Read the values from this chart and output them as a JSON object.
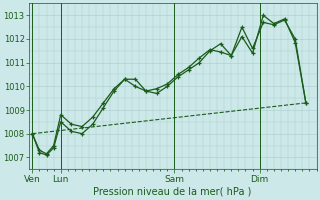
{
  "title": "Pression niveau de la mer( hPa )",
  "bg_color": "#cce8e8",
  "grid_color": "#aacccc",
  "line_color": "#1a5c1a",
  "ylim": [
    1006.5,
    1013.5
  ],
  "yticks": [
    1007,
    1008,
    1009,
    1010,
    1011,
    1012,
    1013
  ],
  "day_labels": [
    "Ven",
    "Lun",
    "Sam",
    "Dim"
  ],
  "day_positions": [
    0,
    8,
    40,
    64
  ],
  "xlim": [
    -1,
    80
  ],
  "series1_x": [
    0,
    2,
    4,
    6,
    8,
    11,
    14,
    17,
    20,
    23,
    26,
    29,
    32,
    35,
    38,
    41,
    44,
    47,
    50,
    53,
    56,
    59,
    62,
    65,
    68,
    71,
    74,
    77
  ],
  "series1_y": [
    1008.0,
    1007.3,
    1007.15,
    1007.5,
    1008.8,
    1008.4,
    1008.3,
    1008.7,
    1009.3,
    1009.9,
    1010.3,
    1010.0,
    1009.8,
    1009.9,
    1010.1,
    1010.5,
    1010.8,
    1011.2,
    1011.55,
    1011.45,
    1011.3,
    1012.5,
    1011.6,
    1012.7,
    1012.6,
    1012.8,
    1012.0,
    1009.3
  ],
  "series2_x": [
    0,
    2,
    4,
    6,
    8,
    11,
    14,
    17,
    20,
    23,
    26,
    29,
    32,
    35,
    38,
    41,
    44,
    47,
    50,
    53,
    56,
    59,
    62,
    65,
    68,
    71,
    74,
    77
  ],
  "series2_y": [
    1008.0,
    1007.2,
    1007.1,
    1007.4,
    1008.5,
    1008.1,
    1008.0,
    1008.4,
    1009.1,
    1009.8,
    1010.3,
    1010.3,
    1009.8,
    1009.7,
    1010.0,
    1010.4,
    1010.7,
    1011.0,
    1011.5,
    1011.8,
    1011.3,
    1012.1,
    1011.4,
    1013.0,
    1012.65,
    1012.85,
    1011.85,
    1009.3
  ],
  "series3_x": [
    0,
    77
  ],
  "series3_y": [
    1008.0,
    1009.3
  ]
}
